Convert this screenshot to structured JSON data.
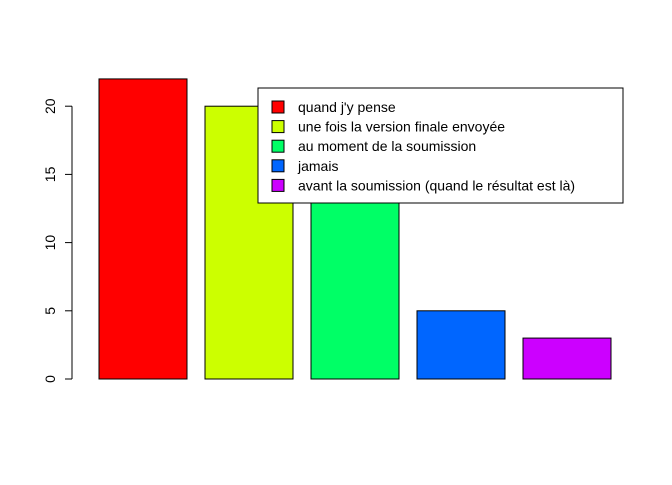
{
  "chart_data": {
    "type": "bar",
    "categories": [
      "quand j'y pense",
      "une fois la version finale envoyée",
      "au moment de la soumission",
      "jamais",
      "avant la soumission (quand le résultat est là)"
    ],
    "values": [
      22,
      20,
      13,
      5,
      3
    ],
    "colors": [
      "#ff0000",
      "#ccff00",
      "#00ff66",
      "#0066ff",
      "#cc00ff"
    ],
    "yticks": [
      0,
      5,
      10,
      15,
      20
    ],
    "ylim": [
      0,
      23
    ],
    "legend_position": "top-right",
    "title": "",
    "xlabel": "",
    "ylabel": ""
  }
}
